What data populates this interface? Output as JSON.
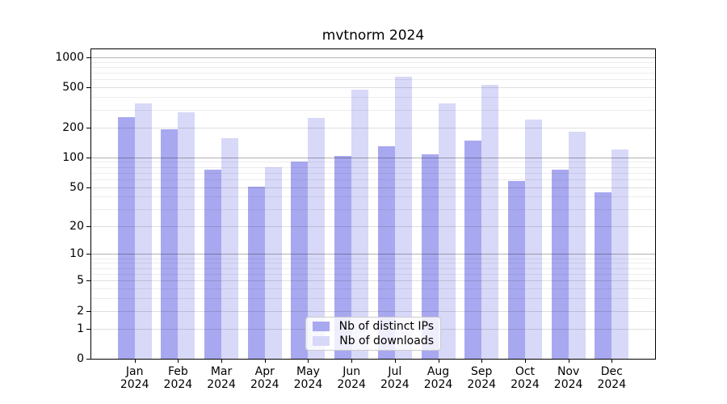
{
  "title": "mvtnorm 2024",
  "axes": {
    "y_max": 1200,
    "y_ticks": [
      {
        "label": "0",
        "value": 0
      },
      {
        "label": "1",
        "value": 1
      },
      {
        "label": "2",
        "value": 2
      },
      {
        "label": "5",
        "value": 5
      },
      {
        "label": "10",
        "value": 10
      },
      {
        "label": "20",
        "value": 20
      },
      {
        "label": "50",
        "value": 50
      },
      {
        "label": "100",
        "value": 100
      },
      {
        "label": "200",
        "value": 200
      },
      {
        "label": "500",
        "value": 500
      },
      {
        "label": "1000",
        "value": 1000
      }
    ],
    "grid": {
      "major": [
        10,
        100,
        1000
      ],
      "mid": [
        1,
        2,
        5,
        20,
        50,
        200,
        500
      ],
      "minor": [
        3,
        4,
        6,
        7,
        8,
        9,
        30,
        40,
        60,
        70,
        80,
        90,
        300,
        400,
        600,
        700,
        800,
        900
      ]
    }
  },
  "chart_data": {
    "type": "bar",
    "title": "mvtnorm 2024",
    "y_scale": "log1p",
    "ylim": [
      0,
      1200
    ],
    "y_tick_values": [
      0,
      1,
      2,
      5,
      10,
      20,
      50,
      100,
      200,
      500,
      1000
    ],
    "grid": "on",
    "legend_position": "lower center",
    "categories": [
      "Jan 2024",
      "Feb 2024",
      "Mar 2024",
      "Apr 2024",
      "May 2024",
      "Jun 2024",
      "Jul 2024",
      "Aug 2024",
      "Sep 2024",
      "Oct 2024",
      "Nov 2024",
      "Dec 2024"
    ],
    "series": [
      {
        "name": "Nb of distinct IPs",
        "color": "#a8a8f0",
        "values": [
          255,
          192,
          75,
          51,
          90,
          104,
          130,
          108,
          148,
          58,
          75,
          44
        ]
      },
      {
        "name": "Nb of downloads",
        "color": "#d8d8f8",
        "values": [
          345,
          280,
          155,
          80,
          250,
          475,
          635,
          345,
          535,
          240,
          182,
          121
        ]
      }
    ]
  }
}
